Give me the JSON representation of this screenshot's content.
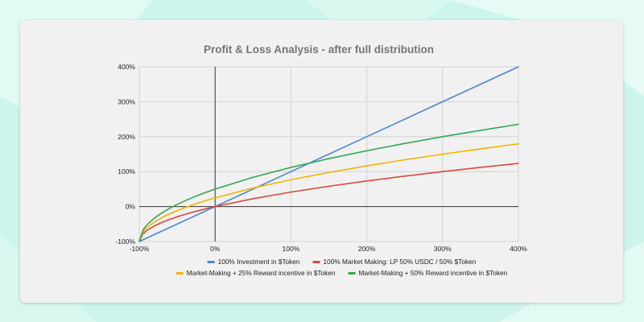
{
  "chart_data": {
    "type": "line",
    "title": "Profit & Loss Analysis - after full distribution",
    "xlabel": "",
    "ylabel": "",
    "xlim": [
      -100,
      400
    ],
    "ylim": [
      -100,
      400
    ],
    "x_ticks": [
      -100,
      0,
      100,
      200,
      300,
      400
    ],
    "y_ticks": [
      -100,
      0,
      100,
      200,
      300,
      400
    ],
    "x_tick_labels": [
      "-100%",
      "0%",
      "100%",
      "200%",
      "300%",
      "400%"
    ],
    "y_tick_labels": [
      "-100%",
      "0%",
      "100%",
      "200%",
      "300%",
      "400%"
    ],
    "grid": true,
    "legend_position": "bottom",
    "series": [
      {
        "name": "100% Investment in $Token",
        "color": "#4a86d3",
        "x": [
          -100,
          0,
          100,
          200,
          300,
          400
        ],
        "y": [
          -100,
          0,
          100,
          200,
          300,
          400
        ]
      },
      {
        "name": "100% Market Making: LP 50% USDC / 50% $Token",
        "color": "#d8493f",
        "x": [
          -100,
          -95,
          -90,
          -80,
          -70,
          -60,
          -50,
          -40,
          -30,
          -20,
          -10,
          0,
          50,
          100,
          150,
          200,
          250,
          300,
          350,
          400
        ],
        "y": [
          -100,
          -77.6,
          -68.4,
          -55.3,
          -45.2,
          -36.8,
          -29.3,
          -22.5,
          -16.3,
          -10.6,
          -5.1,
          0,
          22.5,
          41.4,
          58.1,
          73.2,
          87.1,
          100,
          112.1,
          123.6
        ]
      },
      {
        "name": "Market-Making + 25% Reward incentive in $Token",
        "color": "#f4b400",
        "x": [
          -100,
          -95,
          -90,
          -80,
          -70,
          -60,
          -50,
          -40,
          -30,
          -20,
          -10,
          0,
          50,
          100,
          150,
          200,
          250,
          300,
          350,
          400
        ],
        "y": [
          -100,
          -72.0,
          -60.5,
          -44.1,
          -31.5,
          -21.0,
          -11.6,
          -3.2,
          4.6,
          11.8,
          18.6,
          25,
          53.1,
          76.8,
          97.6,
          116.5,
          133.9,
          150,
          165.2,
          179.5
        ]
      },
      {
        "name": "Market-Making + 50% Reward incentive in $Token",
        "color": "#34a853",
        "x": [
          -100,
          -95,
          -90,
          -80,
          -70,
          -60,
          -50,
          -40,
          -30,
          -20,
          -10,
          0,
          50,
          100,
          150,
          200,
          250,
          300,
          350,
          400
        ],
        "y": [
          -100,
          -66.5,
          -52.6,
          -33.0,
          -17.8,
          -5.1,
          6.1,
          16.2,
          25.5,
          34.2,
          42.3,
          50,
          83.7,
          112.1,
          137.2,
          159.8,
          180.6,
          200,
          218.2,
          235.4
        ]
      }
    ]
  }
}
